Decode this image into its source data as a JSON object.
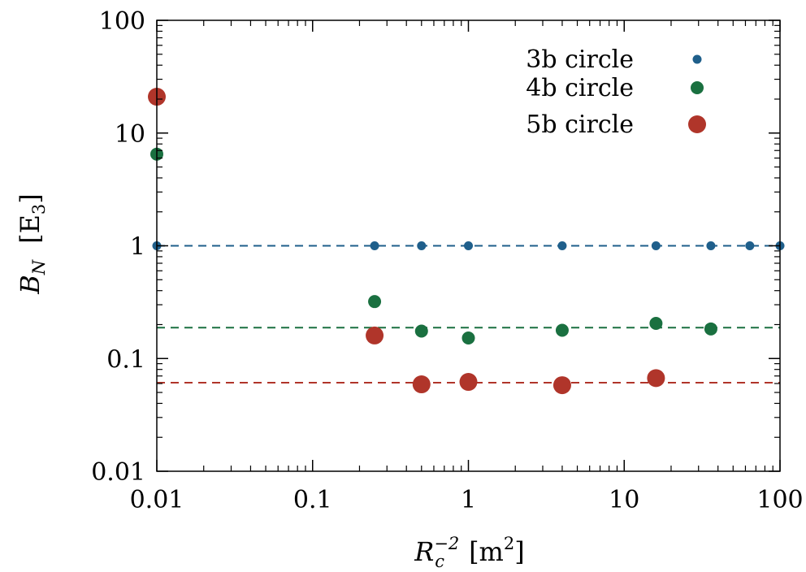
{
  "chart_data": {
    "type": "scatter",
    "title": "",
    "xlabel": {
      "base": "R",
      "sub": "c",
      "sup": "−2",
      "unit": "[m",
      "unit_sup": "2",
      "unit_end": "]"
    },
    "ylabel": {
      "base": "B",
      "sub": "N",
      "unit": "[E",
      "unit_sub": "3",
      "unit_end": "]"
    },
    "x_scale": "log",
    "y_scale": "log",
    "xlim": [
      0.01,
      100
    ],
    "ylim": [
      0.01,
      100
    ],
    "x_ticks": [
      {
        "value": 0.01,
        "label": "0.01"
      },
      {
        "value": 0.1,
        "label": "0.1"
      },
      {
        "value": 1,
        "label": "1"
      },
      {
        "value": 10,
        "label": "10"
      },
      {
        "value": 100,
        "label": "100"
      }
    ],
    "y_ticks": [
      {
        "value": 0.01,
        "label": "0.01"
      },
      {
        "value": 0.1,
        "label": "0.1"
      },
      {
        "value": 1,
        "label": "1"
      },
      {
        "value": 10,
        "label": "10"
      },
      {
        "value": 100,
        "label": "100"
      }
    ],
    "grid": false,
    "legend_position": "top-right",
    "series": [
      {
        "name": "3b circle",
        "color": "#1f5f8b",
        "marker_size": "small",
        "x": [
          0.01,
          0.25,
          0.5,
          1,
          4,
          16,
          36,
          64,
          100
        ],
        "y": [
          1,
          1,
          1,
          1,
          1,
          1,
          1,
          1,
          1
        ],
        "reference_line": 1
      },
      {
        "name": "4b circle",
        "color": "#1a7040",
        "marker_size": "medium",
        "x": [
          0.01,
          0.25,
          0.5,
          1,
          4,
          16,
          36
        ],
        "y": [
          6.5,
          0.32,
          0.175,
          0.152,
          0.178,
          0.205,
          0.183
        ],
        "reference_line": 0.188
      },
      {
        "name": "5b circle",
        "color": "#b0352a",
        "marker_size": "large",
        "x": [
          0.01,
          0.25,
          0.5,
          1,
          4,
          16
        ],
        "y": [
          21,
          0.16,
          0.059,
          0.062,
          0.058,
          0.067
        ],
        "reference_line": 0.061
      }
    ]
  }
}
